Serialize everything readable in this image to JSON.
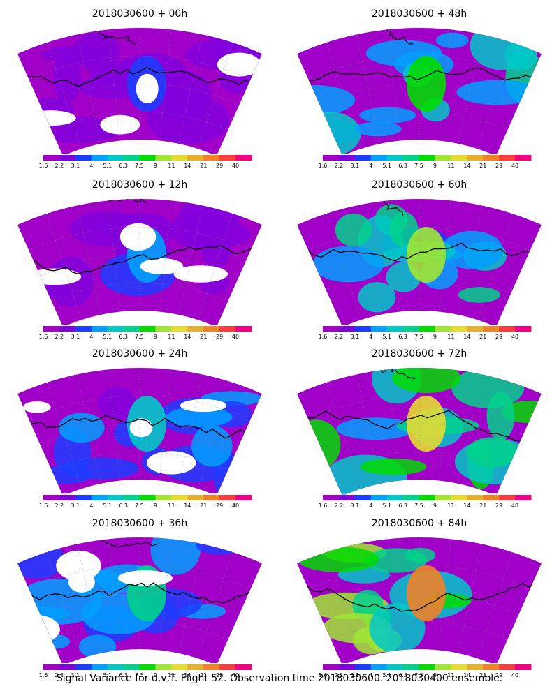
{
  "figure": {
    "caption": "Signal Variance for u,v,T. Flight 52. Observation time 2018030600. 2018030400 ensemble."
  },
  "colorbar": {
    "labels": [
      "1.6",
      "2.2",
      "3.1",
      "4",
      "5.1",
      "6.3",
      "7.5",
      "9",
      "11",
      "14",
      "21",
      "29",
      "40"
    ],
    "colors": [
      "#a000c8",
      "#8200dc",
      "#1e3cff",
      "#00a0ff",
      "#00c8c8",
      "#00d28c",
      "#00dc00",
      "#a0e632",
      "#e6dc32",
      "#e6af2d",
      "#f08228",
      "#fa3c3c",
      "#f00082"
    ]
  },
  "chart_data": [
    {
      "type": "heatmap",
      "title": "2018030600 + 00h",
      "intensity": 0.15
    },
    {
      "type": "heatmap",
      "title": "2018030600 + 12h",
      "intensity": 0.25
    },
    {
      "type": "heatmap",
      "title": "2018030600 + 24h",
      "intensity": 0.35
    },
    {
      "type": "heatmap",
      "title": "2018030600 + 36h",
      "intensity": 0.45
    },
    {
      "type": "heatmap",
      "title": "2018030600 + 48h",
      "intensity": 0.5
    },
    {
      "type": "heatmap",
      "title": "2018030600 + 60h",
      "intensity": 0.62
    },
    {
      "type": "heatmap",
      "title": "2018030600 + 72h",
      "intensity": 0.75
    },
    {
      "type": "heatmap",
      "title": "2018030600 + 84h",
      "intensity": 0.88
    }
  ]
}
